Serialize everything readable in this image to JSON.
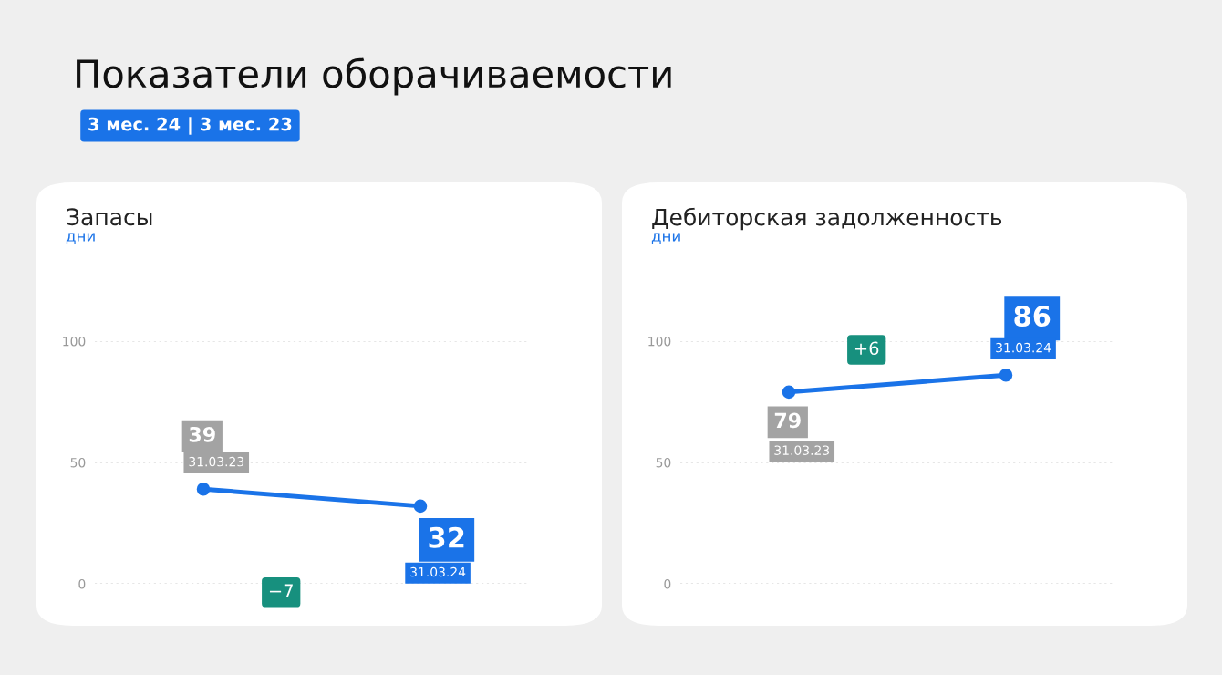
{
  "chart_data": [
    {
      "type": "line",
      "title": "Запасы",
      "ylabel": "дни",
      "annotations": [
        "Показатели оборачиваемости",
        "3 мес. 24 | 3 мес. 23",
        "−7"
      ],
      "categories": [
        "31.03.23",
        "31.03.24"
      ],
      "series": [
        {
          "color": "#1a73e8",
          "values": [
            39,
            32
          ]
        }
      ],
      "ylim": [
        0,
        100
      ],
      "yticks": [
        0,
        50,
        100
      ],
      "grid": "y",
      "marker": "circle",
      "line_style": "solid",
      "data_labels": true
    },
    {
      "type": "line",
      "title": "Дебиторская задолженность",
      "ylabel": "дни",
      "annotations": [
        "+6"
      ],
      "categories": [
        "31.03.23",
        "31.03.24"
      ],
      "series": [
        {
          "color": "#1a73e8",
          "values": [
            79,
            86
          ]
        }
      ],
      "ylim": [
        0,
        100
      ],
      "yticks": [
        0,
        50,
        100
      ],
      "grid": "y",
      "marker": "circle",
      "line_style": "solid",
      "data_labels": true
    }
  ]
}
